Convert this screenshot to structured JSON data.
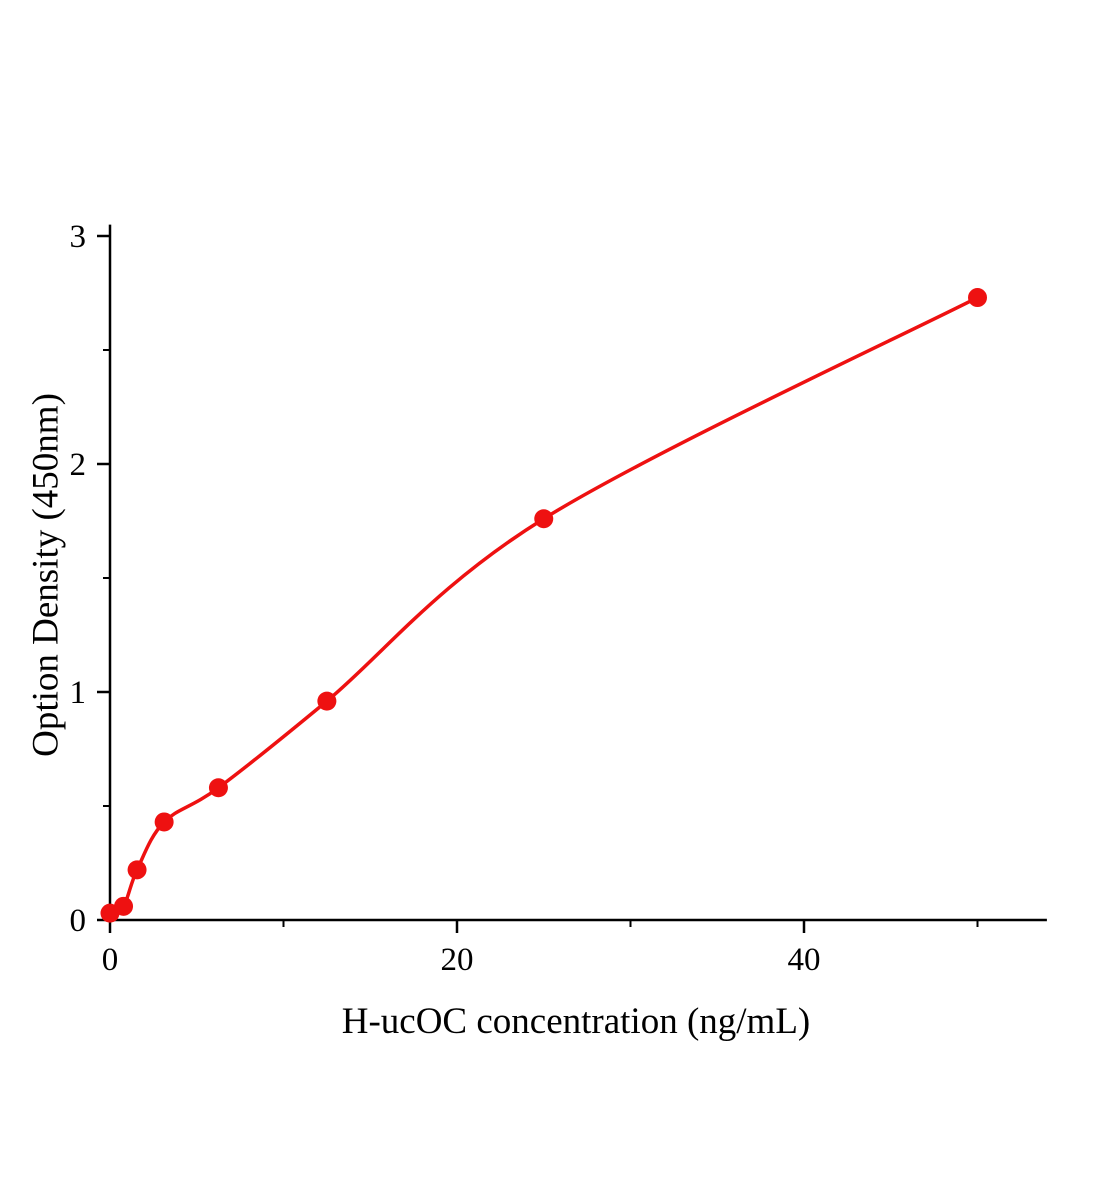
{
  "chart_data": {
    "type": "scatter",
    "title": "",
    "xlabel": "H-ucOC concentration (ng/mL)",
    "ylabel": "Option Density (450nm)",
    "x": [
      0,
      0.78,
      1.56,
      3.12,
      6.25,
      12.5,
      25,
      50
    ],
    "y": [
      0.03,
      0.06,
      0.22,
      0.43,
      0.58,
      0.96,
      1.76,
      2.73
    ],
    "fit_curve": "smooth four-parameter / power-like standard curve through points",
    "xlim": [
      0,
      54
    ],
    "ylim": [
      0,
      3.05
    ],
    "xticks": [
      0,
      20,
      40
    ],
    "yticks": [
      0,
      1,
      2,
      3
    ],
    "minor_xticks": [
      10,
      30,
      50
    ],
    "minor_yticks": [
      0.5,
      1.5,
      2.5
    ],
    "legend": [],
    "grid": "off",
    "point_color": "#ee1111",
    "line_color": "#ee1111",
    "axis_color": "#000000"
  }
}
